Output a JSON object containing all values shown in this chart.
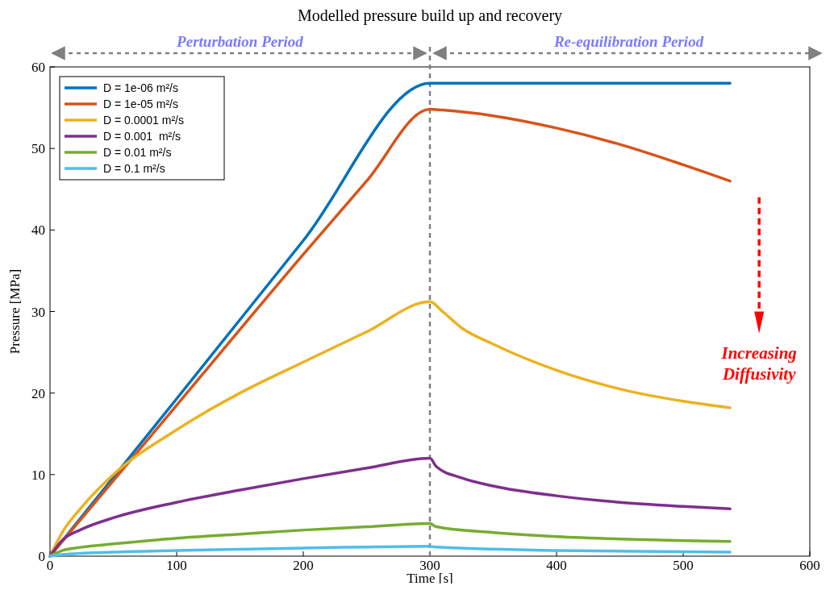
{
  "chart_data": {
    "type": "line",
    "title": "Modelled pressure build up and recovery",
    "xlabel": "Time [s]",
    "ylabel": "Pressure [MPa]",
    "xlim": [
      0,
      600
    ],
    "xticks": [
      0,
      100,
      200,
      300,
      400,
      500,
      600
    ],
    "ylim": [
      0,
      60
    ],
    "yticks": [
      0,
      10,
      20,
      30,
      40,
      50,
      60
    ],
    "grid": false,
    "legend": "top left",
    "line_style": "solid",
    "marker": "none",
    "ref_lines": [
      {
        "axis": "x",
        "value": 300,
        "color": "#808080",
        "line_style": "dashed"
      }
    ],
    "annotations": [
      "Perturbation Period",
      "Re-equilibration Period",
      "Increasing Diffusivity"
    ],
    "series": [
      {
        "name": "D = 1e-06 m²/s",
        "color": "#0072bd",
        "x": [
          0,
          100,
          200,
          300,
          400,
          537
        ],
        "values": [
          0,
          19.3,
          38.7,
          58,
          58,
          58
        ]
      },
      {
        "name": "D = 1e-05 m²/s",
        "color": "#d95319",
        "x": [
          0,
          100,
          200,
          250,
          300,
          310,
          350,
          400,
          450,
          500,
          537
        ],
        "values": [
          0,
          18.5,
          37,
          46,
          54.8,
          54.7,
          54,
          52.5,
          50.5,
          48,
          46
        ]
      },
      {
        "name": "D = 0.0001 m²/s",
        "color": "#edb120",
        "x": [
          0,
          10,
          25,
          50,
          100,
          150,
          200,
          250,
          300,
          310,
          325,
          350,
          400,
          450,
          500,
          537
        ],
        "values": [
          0,
          3,
          6,
          10,
          15.5,
          20,
          23.8,
          27.5,
          31.2,
          30,
          28,
          26,
          22.8,
          20.5,
          19,
          18.2
        ]
      },
      {
        "name": "D = 0.001  m²/s",
        "color": "#7e2f8e",
        "x": [
          0,
          10,
          25,
          50,
          100,
          150,
          200,
          250,
          300,
          305,
          325,
          350,
          400,
          450,
          500,
          537
        ],
        "values": [
          0,
          2,
          3.3,
          4.7,
          6.6,
          8.1,
          9.5,
          10.8,
          12,
          11,
          9.6,
          8.6,
          7.4,
          6.6,
          6.1,
          5.8
        ]
      },
      {
        "name": "D = 0.01 m²/s",
        "color": "#77ac30",
        "x": [
          0,
          10,
          25,
          50,
          100,
          150,
          200,
          250,
          300,
          305,
          350,
          400,
          450,
          500,
          537
        ],
        "values": [
          0,
          0.7,
          1.1,
          1.5,
          2.2,
          2.7,
          3.2,
          3.6,
          4,
          3.6,
          2.9,
          2.4,
          2.1,
          1.9,
          1.8
        ]
      },
      {
        "name": "D = 0.1 m²/s",
        "color": "#4dbeee",
        "x": [
          0,
          10,
          50,
          100,
          200,
          300,
          305,
          400,
          537
        ],
        "values": [
          0,
          0.2,
          0.5,
          0.7,
          1,
          1.2,
          1.1,
          0.7,
          0.5
        ]
      }
    ]
  }
}
